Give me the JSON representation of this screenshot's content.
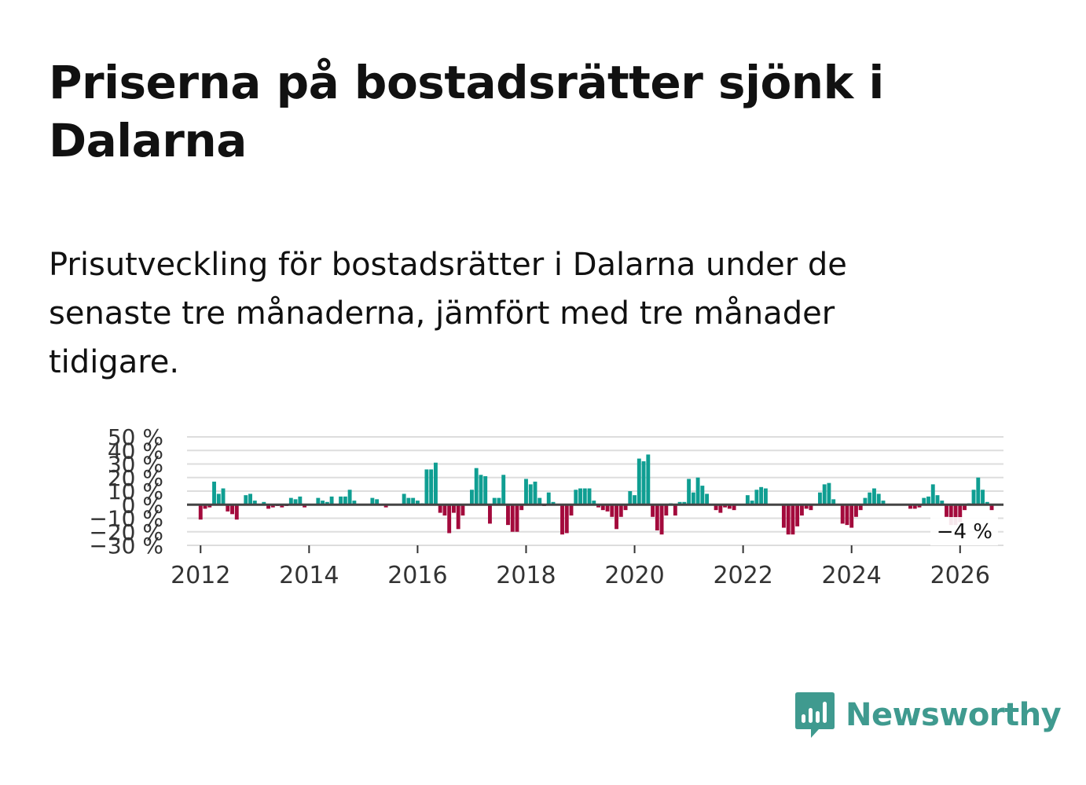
{
  "title": "Priserna på bostadsrätter sjönk i Dalarna",
  "subtitle": "Prisutveckling för bostadsrätter i Dalarna under de senaste tre månaderna, jämfört med tre månader tidigare.",
  "brand": {
    "name": "Newsworthy",
    "icon": "newsworthy-logo-icon",
    "color": "#3f9a8f"
  },
  "colors": {
    "positive": "#0f9e92",
    "negative": "#a30a3c",
    "grid": "#dddddd",
    "zero": "#444444"
  },
  "chart_data": {
    "type": "bar",
    "title": "",
    "xlabel": "",
    "ylabel": "",
    "ylim": [
      -30,
      50
    ],
    "yticks": [
      -30,
      -20,
      -10,
      0,
      10,
      20,
      30,
      40,
      50
    ],
    "ytick_labels": [
      "−30 %",
      "−20 %",
      "−10 %",
      "0 %",
      "10 %",
      "20 %",
      "30 %",
      "40 %",
      "50 %"
    ],
    "xlim": [
      2011.75,
      2026.8
    ],
    "xticks": [
      2012,
      2014,
      2016,
      2018,
      2020,
      2022,
      2024,
      2026
    ],
    "xtick_labels": [
      "2012",
      "2014",
      "2016",
      "2018",
      "2020",
      "2022",
      "2024",
      "2026"
    ],
    "start_year": 2012,
    "start_month": 1,
    "values": [
      -11,
      -3,
      -2,
      17,
      8,
      12,
      -5,
      -7,
      -11,
      0,
      7,
      8,
      3,
      0,
      2,
      -3,
      -2,
      -1,
      -2,
      -1,
      5,
      4,
      6,
      -2,
      0,
      0,
      5,
      3,
      2,
      6,
      0,
      6,
      6,
      11,
      3,
      0,
      0,
      0,
      5,
      4,
      0,
      -2,
      0,
      0,
      0,
      8,
      5,
      5,
      3,
      1,
      26,
      26,
      31,
      -6,
      -8,
      -21,
      -6,
      -18,
      -8,
      0,
      11,
      27,
      22,
      21,
      -14,
      5,
      5,
      22,
      -15,
      -20,
      -20,
      -4,
      19,
      15,
      17,
      5,
      -1,
      9,
      2,
      0,
      -22,
      -21,
      -8,
      11,
      12,
      12,
      12,
      3,
      -2,
      -4,
      -5,
      -9,
      -18,
      -9,
      -4,
      10,
      7,
      34,
      32,
      37,
      -9,
      -19,
      -22,
      -8,
      1,
      -8,
      2,
      2,
      19,
      9,
      20,
      14,
      8,
      0,
      -4,
      -6,
      -2,
      -3,
      -4,
      0,
      0,
      7,
      3,
      11,
      13,
      12,
      0,
      0,
      0,
      -17,
      -22,
      -22,
      -16,
      -8,
      -3,
      -4,
      0,
      9,
      15,
      16,
      4,
      0,
      -14,
      -15,
      -17,
      -9,
      -4,
      5,
      9,
      12,
      8,
      3,
      0,
      0,
      0,
      0,
      0,
      -3,
      -3,
      -2,
      5,
      6,
      15,
      7,
      3,
      -9,
      -15,
      -15,
      -13,
      -4,
      1,
      11,
      20,
      11,
      2,
      -4
    ],
    "last_label": "−4 %"
  }
}
